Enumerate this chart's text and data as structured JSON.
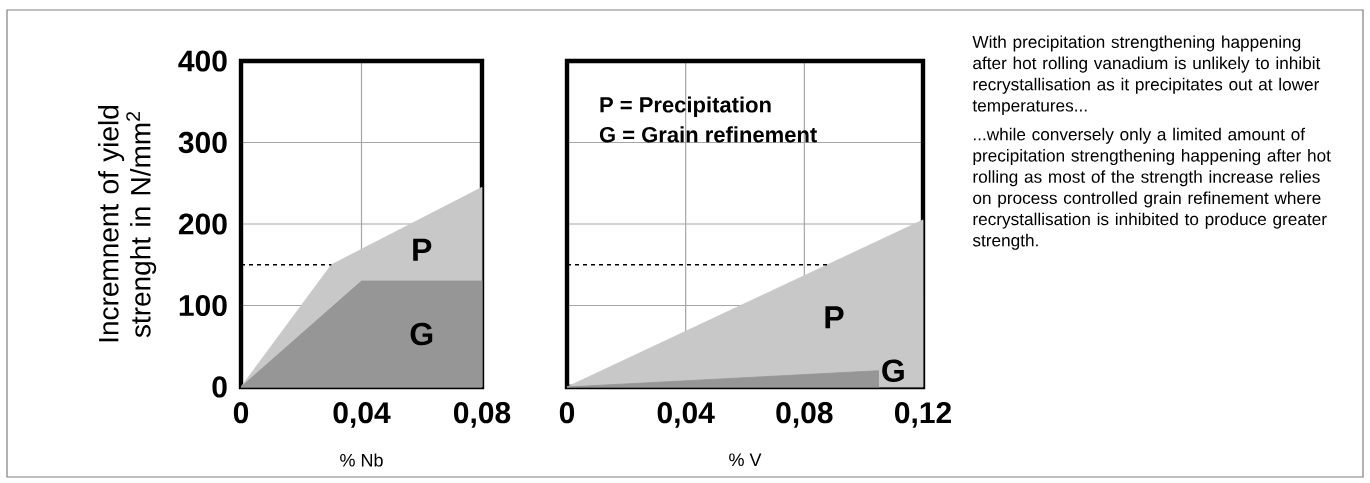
{
  "chart_data": [
    {
      "type": "area",
      "xlabel": "% Nb",
      "ylabel": "Incremnent of yield strenght in N/mm$^{2}$",
      "xlim": [
        0,
        0.08
      ],
      "ylim": [
        0,
        400
      ],
      "xticks": [
        0,
        {
          "value": 0.04,
          "label": "0,04"
        },
        {
          "value": 0.08,
          "label": "0,08"
        }
      ],
      "yticks": [
        0,
        100,
        200,
        300,
        400
      ],
      "grid": true,
      "series": [
        {
          "name": "P",
          "color": "#c8c8c8",
          "x": [
            0,
            0.03,
            0.08
          ],
          "values": [
            0,
            150,
            245
          ]
        },
        {
          "name": "G",
          "color": "#969696",
          "x": [
            0,
            0.04,
            0.08
          ],
          "values": [
            0,
            130,
            130
          ]
        },
        {
          "type": "line",
          "line_style": "dashed",
          "color": "#000000",
          "x": [
            0,
            0.03
          ],
          "values": [
            150,
            150
          ]
        }
      ]
    },
    {
      "type": "area",
      "xlabel": "% V",
      "xlim": [
        0,
        0.12
      ],
      "ylim": [
        0,
        400
      ],
      "xticks": [
        0,
        {
          "value": 0.04,
          "label": "0,04"
        },
        {
          "value": 0.08,
          "label": "0,08"
        },
        {
          "value": 0.12,
          "label": "0,12"
        }
      ],
      "yticks": [
        0,
        100,
        200,
        300,
        400
      ],
      "grid": true,
      "tick_labels": "x",
      "annotations": [
        "P = Precipitation",
        "G = Grain refinement"
      ],
      "series": [
        {
          "name": "P",
          "color": "#c8c8c8",
          "x": [
            0,
            0.12
          ],
          "values": [
            0,
            205
          ]
        },
        {
          "name": "G",
          "color": "#969696",
          "x": [
            0,
            0.105
          ],
          "values": [
            0,
            20
          ]
        },
        {
          "type": "line",
          "line_style": "dashed",
          "color": "#000000",
          "x": [
            0,
            0.088
          ],
          "values": [
            150,
            150
          ]
        }
      ]
    },
    {
      "type": "other",
      "annotations": [
        "With precipitation strengthening happening after hot rolling vanadium is unlikely to inhibit recrystallisation as it precipitates out at lower temperatures...",
        "...while conversely only a limited amount of precipitation strengthening happening after hot rolling as most of the strength increase relies on process controlled grain refinement where recrystallisation is inhibited to produce greater strength."
      ]
    }
  ]
}
